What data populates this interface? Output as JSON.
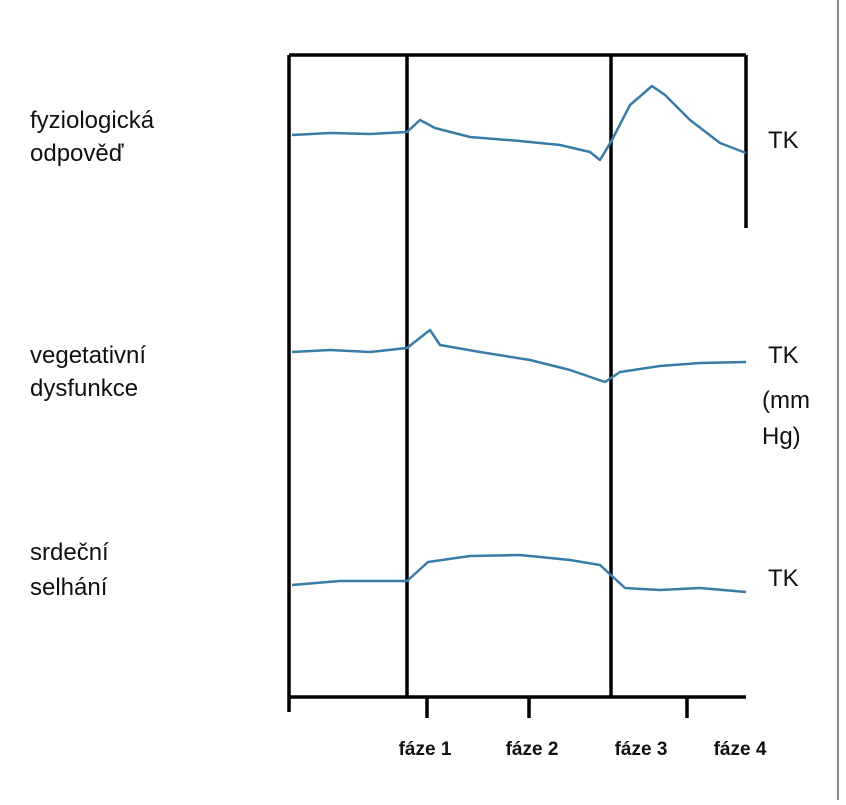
{
  "rows": [
    {
      "label": [
        "fyziologická",
        "odpověď"
      ],
      "unit": "TK"
    },
    {
      "label": [
        "vegetativní",
        "dysfunkce"
      ],
      "unit": "TK"
    },
    {
      "label": [
        "srdeční",
        "selhání"
      ],
      "unit": "TK"
    }
  ],
  "unit_note": [
    "(mm",
    "Hg)"
  ],
  "phases": [
    "fáze 1",
    "fáze 2",
    "fáze 3",
    "fáze 4"
  ]
}
